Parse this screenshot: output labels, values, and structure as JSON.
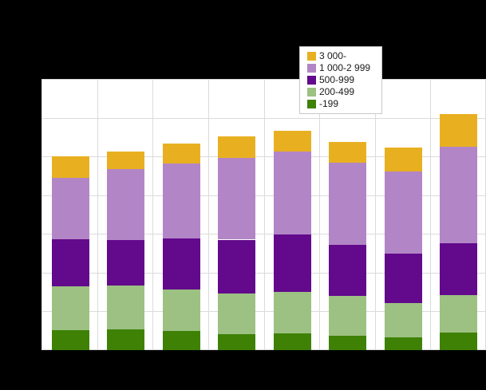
{
  "window": {
    "background": "#000000"
  },
  "chart_data": {
    "type": "bar",
    "stacked": true,
    "title": "",
    "xlabel": "",
    "ylabel": "",
    "categories": [
      "",
      "",
      "",
      "",
      "",
      "",
      "",
      ""
    ],
    "series": [
      {
        "name": "-199",
        "color": "#3e8104",
        "values": [
          255,
          272,
          248,
          204,
          220,
          186,
          168,
          230
        ]
      },
      {
        "name": "200-499",
        "color": "#9cc182",
        "values": [
          568,
          562,
          530,
          527,
          534,
          517,
          438,
          479
        ]
      },
      {
        "name": "500-999",
        "color": "#62098c",
        "values": [
          613,
          582,
          665,
          695,
          741,
          654,
          636,
          671
        ]
      },
      {
        "name": "1 000-2 999",
        "color": "#b286c6",
        "values": [
          788,
          923,
          961,
          1050,
          1067,
          1058,
          1061,
          1250
        ]
      },
      {
        "name": "3 000-",
        "color": "#e8b021",
        "values": [
          276,
          224,
          261,
          282,
          266,
          272,
          317,
          413
        ]
      }
    ],
    "ylim": [
      0,
      3500
    ],
    "y_step": 500,
    "grid": true,
    "tick_labels_visible": false,
    "legend_position": "top-right"
  },
  "legend": {
    "items": [
      {
        "label": "3 000-",
        "color": "#e8b021"
      },
      {
        "label": "1 000-2 999",
        "color": "#b286c6"
      },
      {
        "label": "500-999",
        "color": "#62098c"
      },
      {
        "label": "200-499",
        "color": "#9cc182"
      },
      {
        "label": "-199",
        "color": "#3e8104"
      }
    ]
  },
  "colors": {
    "background": "#000000",
    "plot_background": "#ffffff",
    "gridline": "#dbdbdb",
    "legend_border": "#c9c9c9",
    "legend_text": "#1a1a1a"
  }
}
